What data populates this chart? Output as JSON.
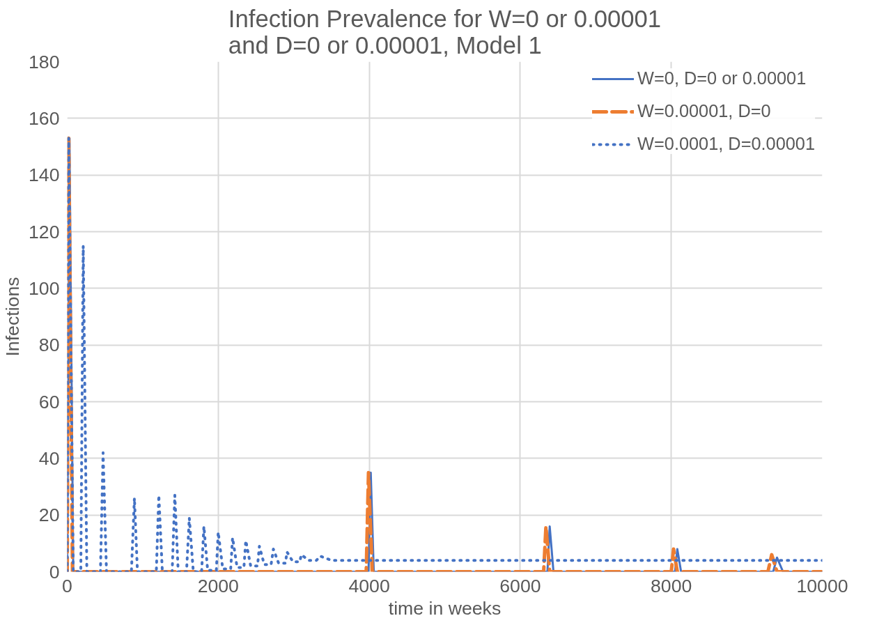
{
  "chart_data": {
    "type": "line",
    "title": "Infection Prevalence for W=0 or 0.00001\nand D=0 or 0.00001, Model 1",
    "xlabel": "time in weeks",
    "ylabel": "Infections",
    "xlim": [
      0,
      10000
    ],
    "xticks": [
      0,
      2000,
      4000,
      6000,
      8000,
      10000
    ],
    "ylim": [
      0,
      180
    ],
    "yticks": [
      0,
      20,
      40,
      60,
      80,
      100,
      120,
      140,
      160,
      180
    ],
    "grid": true,
    "legend": "top right",
    "series": [
      {
        "name": "W=0, D=0 or 0.00001",
        "color": "#4472c4",
        "line_style": "solid",
        "x": [
          0,
          30,
          80,
          3990,
          4020,
          4060,
          6360,
          6390,
          6440,
          8050,
          8080,
          8130,
          9350,
          9400,
          9480,
          10000
        ],
        "values": [
          0,
          153,
          0,
          0,
          35,
          0,
          0,
          16,
          0,
          0,
          8,
          0,
          0,
          5,
          0,
          0
        ]
      },
      {
        "name": "W=0.00001, D=0",
        "color": "#ed7d31",
        "line_style": "dashed",
        "x": [
          0,
          20,
          70,
          3960,
          3990,
          4040,
          6310,
          6340,
          6390,
          8000,
          8030,
          8080,
          9280,
          9330,
          9400,
          10000
        ],
        "values": [
          0,
          153,
          0,
          0,
          35,
          0,
          0,
          16,
          0,
          0,
          8,
          0,
          0,
          6,
          0,
          0
        ]
      },
      {
        "name": "W=0.0001, D=0.00001",
        "color": "#4472c4",
        "line_style": "dotted",
        "x": [
          0,
          20,
          80,
          180,
          212,
          260,
          440,
          475,
          520,
          850,
          890,
          930,
          1180,
          1213,
          1260,
          1390,
          1425,
          1470,
          1580,
          1617,
          1670,
          1780,
          1810,
          1860,
          1975,
          2000,
          2060,
          2165,
          2190,
          2250,
          2340,
          2365,
          2430,
          2520,
          2545,
          2610,
          2700,
          2730,
          2800,
          2890,
          2910,
          2990,
          3080,
          3100,
          3200,
          3300,
          3350,
          3500,
          3700,
          10000
        ],
        "values": [
          0,
          153,
          0,
          0,
          115,
          0,
          0,
          42,
          0,
          0,
          26,
          0,
          0,
          27,
          0,
          0,
          27,
          0,
          0,
          19,
          0,
          0,
          16,
          0.5,
          0.5,
          14,
          1,
          1,
          12,
          1.5,
          1.5,
          11,
          2,
          2,
          9,
          2.5,
          2.5,
          8,
          3,
          3,
          7,
          3.5,
          3.5,
          6,
          4,
          4,
          5.5,
          4,
          4,
          4
        ]
      }
    ]
  }
}
